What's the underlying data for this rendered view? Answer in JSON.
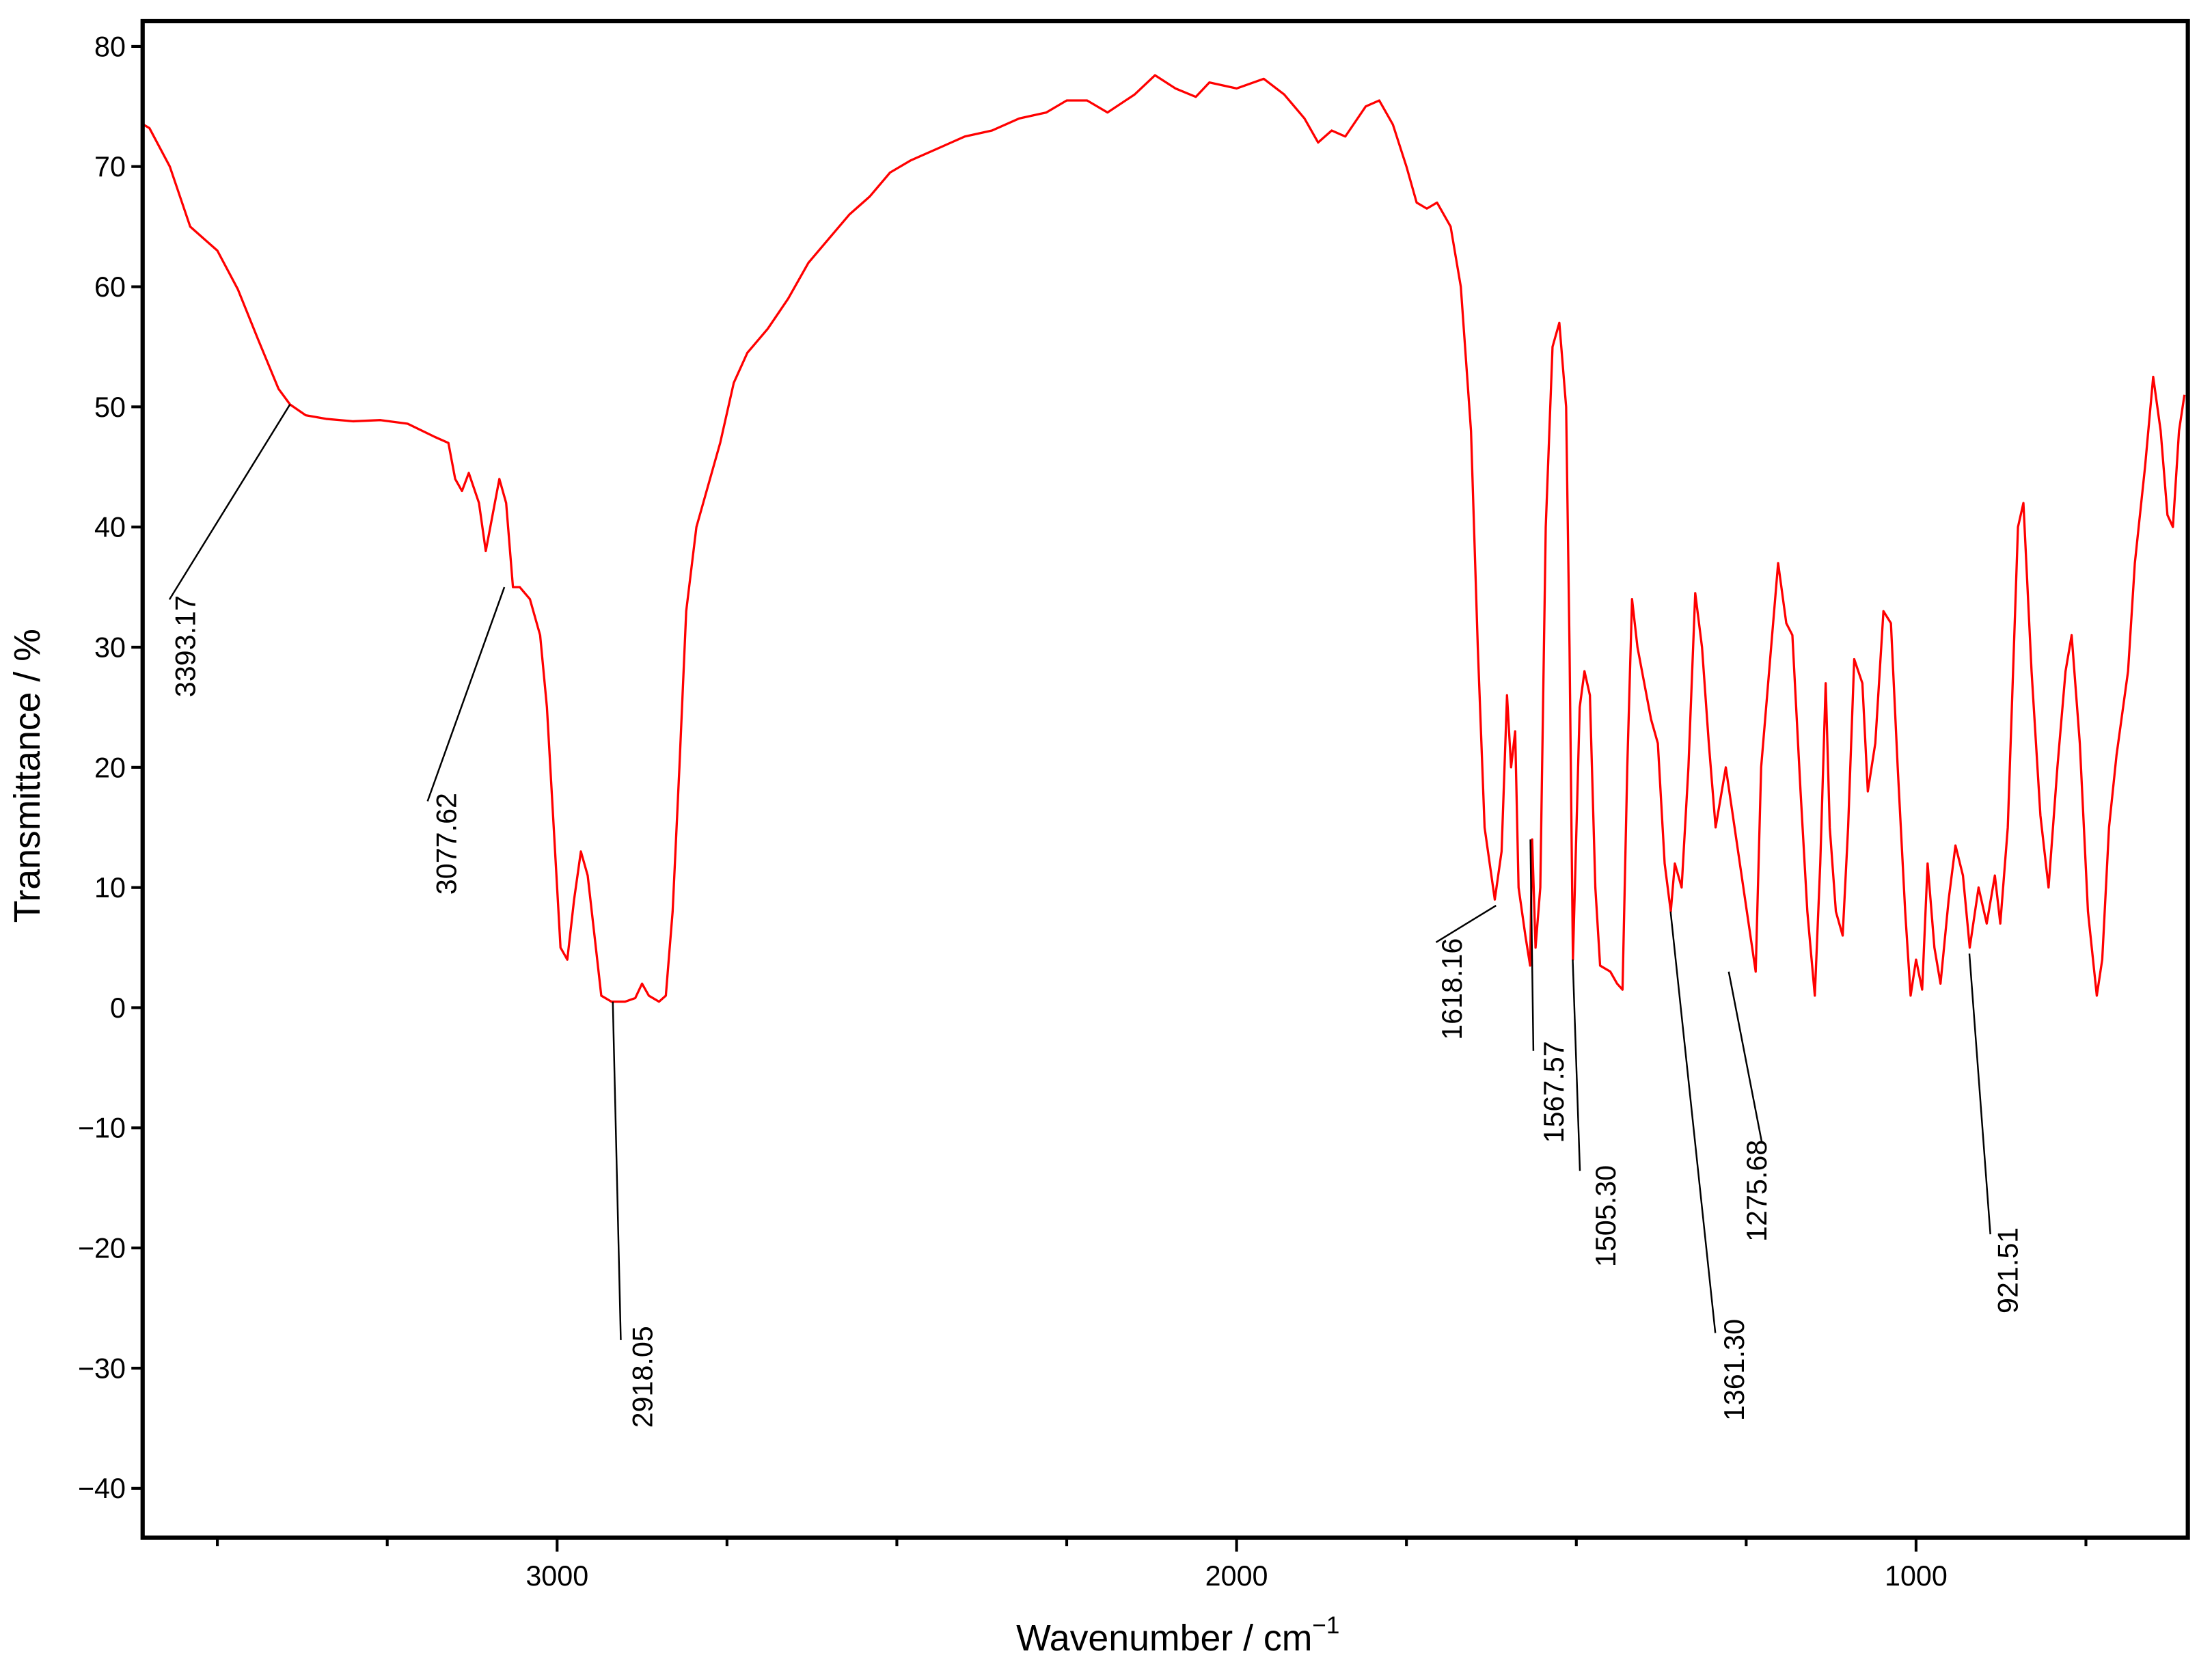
{
  "chart_data": {
    "type": "line",
    "ylabel": "Transmittance / %",
    "xlabel": "Wavenumber / cm",
    "xlabel_sup": "−1",
    "color": "#ff0000",
    "xlim": [
      3610,
      600
    ],
    "ylim": [
      -44.1,
      82.1
    ],
    "xticks": [
      3000,
      2000,
      1000
    ],
    "xticks_minor": [
      3500,
      3250,
      2750,
      2500,
      2250,
      1750,
      1500,
      1250,
      750
    ],
    "yticks": [
      80,
      70,
      60,
      50,
      40,
      30,
      20,
      10,
      0,
      {
        "value": -10,
        "label": "−10"
      },
      {
        "value": -20,
        "label": "−20"
      },
      {
        "value": -30,
        "label": "−30"
      },
      {
        "value": -40,
        "label": "−40"
      }
    ],
    "x": [
      3609,
      3600,
      3570,
      3540,
      3520,
      3500,
      3470,
      3440,
      3410,
      3393,
      3370,
      3340,
      3300,
      3260,
      3220,
      3180,
      3160,
      3150,
      3140,
      3130,
      3115,
      3105,
      3095,
      3085,
      3075,
      3065,
      3055,
      3040,
      3025,
      3015,
      3005,
      2995,
      2985,
      2975,
      2965,
      2955,
      2945,
      2935,
      2920,
      2900,
      2885,
      2875,
      2865,
      2850,
      2840,
      2830,
      2820,
      2810,
      2795,
      2780,
      2760,
      2740,
      2720,
      2690,
      2660,
      2630,
      2600,
      2570,
      2540,
      2510,
      2480,
      2440,
      2400,
      2360,
      2320,
      2280,
      2250,
      2220,
      2190,
      2150,
      2120,
      2090,
      2060,
      2040,
      2000,
      1960,
      1930,
      1900,
      1880,
      1860,
      1840,
      1810,
      1790,
      1770,
      1750,
      1735,
      1720,
      1705,
      1685,
      1670,
      1655,
      1645,
      1635,
      1620,
      1610,
      1602,
      1596,
      1590,
      1585,
      1575,
      1568,
      1565,
      1560,
      1553,
      1545,
      1535,
      1525,
      1515,
      1510,
      1505,
      1495,
      1488,
      1480,
      1472,
      1465,
      1450,
      1440,
      1432,
      1425,
      1418,
      1410,
      1400,
      1390,
      1380,
      1370,
      1361,
      1355,
      1345,
      1335,
      1325,
      1315,
      1305,
      1295,
      1280,
      1249,
      1236,
      1228,
      1203,
      1191,
      1182,
      1170,
      1160,
      1149,
      1141,
      1133,
      1127,
      1118,
      1108,
      1100,
      1091,
      1079,
      1071,
      1060,
      1048,
      1037,
      1027,
      1016,
      1008,
      1000,
      991,
      983,
      973,
      964,
      952,
      942,
      931,
      921,
      908,
      896,
      884,
      876,
      865,
      850,
      842,
      830,
      817,
      805,
      792,
      780,
      771,
      759,
      747,
      734,
      726,
      716,
      705,
      688,
      678,
      663,
      651,
      640,
      630,
      622,
      613,
      605
    ],
    "values": [
      73.5,
      73.2,
      70,
      65,
      64,
      63,
      59.8,
      55.6,
      51.5,
      50.2,
      49.3,
      49,
      48.8,
      48.9,
      48.6,
      47.5,
      47,
      44,
      43,
      44.5,
      42,
      38,
      41,
      44,
      42,
      35,
      35,
      34,
      31,
      25,
      15,
      5,
      4,
      9,
      13,
      11,
      6,
      1,
      0.5,
      0.5,
      0.8,
      2,
      1,
      0.5,
      1,
      8,
      20,
      33,
      40,
      43,
      47,
      52,
      54.5,
      56.5,
      59,
      62,
      64,
      66,
      67.5,
      69.5,
      70.5,
      71.5,
      72.5,
      73,
      74,
      74.5,
      75.5,
      75.5,
      74.5,
      76,
      77.6,
      76.5,
      75.8,
      77,
      76.5,
      77.3,
      76,
      74,
      72,
      73,
      72.5,
      75,
      75.5,
      73.5,
      70,
      67,
      66.5,
      67,
      65,
      60,
      48,
      30,
      15,
      9,
      13,
      26,
      20,
      23,
      10,
      6,
      3.5,
      14,
      5,
      10,
      40,
      55,
      57,
      50,
      30,
      4,
      25,
      28,
      26,
      10,
      3.5,
      3,
      2,
      1.5,
      20,
      34,
      30,
      27,
      24,
      22,
      12,
      8,
      12,
      10,
      20,
      34.5,
      30,
      22,
      15,
      20,
      8,
      3,
      20,
      37,
      32,
      31,
      18,
      8,
      1,
      12,
      27,
      15,
      8,
      6,
      15,
      29,
      27,
      18,
      22,
      33,
      32,
      20,
      8,
      1,
      4,
      1.5,
      12,
      5,
      2,
      9,
      13.5,
      11,
      5,
      10,
      7,
      11,
      7,
      15,
      40,
      42,
      28,
      16,
      10,
      20,
      28,
      31,
      22,
      8,
      1,
      4,
      15,
      21,
      28,
      37,
      45,
      52.5,
      48,
      41,
      40,
      48,
      51
    ],
    "annotations": [
      {
        "x": 3393.17,
        "y": 50.2,
        "label": "3393.17"
      },
      {
        "x": 3077.62,
        "y": 35,
        "label": "3077.62"
      },
      {
        "x": 2918.05,
        "y": 0.5,
        "label": "2918.05"
      },
      {
        "x": 1618.16,
        "y": 8.5,
        "label": "1618.16"
      },
      {
        "x": 1567.57,
        "y": 14,
        "label": "1567.57"
      },
      {
        "x": 1505.3,
        "y": 4,
        "label": "1505.30"
      },
      {
        "x": 1361.3,
        "y": 8,
        "label": "1361.30"
      },
      {
        "x": 1275.68,
        "y": 3,
        "label": "1275.68"
      },
      {
        "x": 921.51,
        "y": 4.5,
        "label": "921.51"
      }
    ]
  }
}
